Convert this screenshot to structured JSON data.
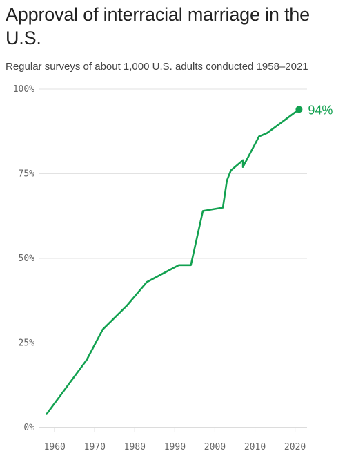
{
  "title": "Approval of interracial marriage in the U.S.",
  "subtitle": "Regular surveys of about 1,000 U.S. adults conducted 1958–2021",
  "chart_data": {
    "type": "line",
    "title": "Approval of interracial marriage in the U.S.",
    "subtitle": "Regular surveys of about 1,000 U.S. adults conducted 1958–2021",
    "xlabel": "",
    "ylabel": "",
    "xlim": [
      1956,
      2023
    ],
    "ylim": [
      0,
      100
    ],
    "x_ticks": [
      1960,
      1970,
      1980,
      1990,
      2000,
      2010,
      2020
    ],
    "x_tick_labels": [
      "1960",
      "1970",
      "1980",
      "1990",
      "2000",
      "2010",
      "2020"
    ],
    "y_ticks": [
      0,
      25,
      50,
      75,
      100
    ],
    "y_tick_labels": [
      "0%",
      "25%",
      "50%",
      "75%",
      "100%"
    ],
    "grid": "horizontal",
    "line_color": "#12a150",
    "series": [
      {
        "x": [
          1958,
          1968,
          1972,
          1978,
          1983,
          1991,
          1994,
          1997,
          2002,
          2003,
          2004,
          2007,
          2007,
          2011,
          2013,
          2021
        ],
        "y": [
          4,
          20,
          29,
          36,
          43,
          48,
          48,
          64,
          65,
          73,
          76,
          79,
          77,
          86,
          87,
          94
        ]
      }
    ],
    "end_label": "94%"
  }
}
